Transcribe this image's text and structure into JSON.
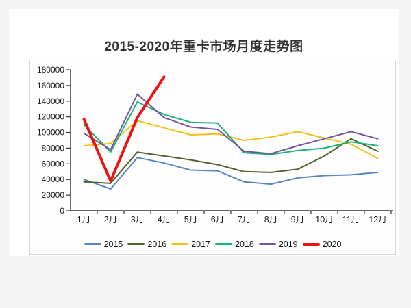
{
  "title": "2015-2020年重卡市场月度走势图",
  "panel": {
    "border_color": "#d4d4d4",
    "background": "#fefefe"
  },
  "axis": {
    "color": "#333333",
    "label_color": "#1a1a1a"
  },
  "chart_data": {
    "type": "line",
    "title": "2015-2020年重卡市场月度走势图",
    "xlabel": "",
    "ylabel": "",
    "categories": [
      "1月",
      "2月",
      "3月",
      "4月",
      "5月",
      "6月",
      "7月",
      "8月",
      "9月",
      "10月",
      "11月",
      "12月"
    ],
    "yticks": [
      "0",
      "20000",
      "40000",
      "60000",
      "80000",
      "100000",
      "120000",
      "140000",
      "160000",
      "180000"
    ],
    "ylim": [
      0,
      180000
    ],
    "ytick_step": 20000,
    "grid": false,
    "legend_position": "bottom",
    "series": [
      {
        "name": "2015",
        "color": "#5886c5",
        "thick": false,
        "values": [
          40000,
          28000,
          68000,
          61000,
          52000,
          51000,
          37000,
          34000,
          42000,
          45000,
          46000,
          49000
        ]
      },
      {
        "name": "2016",
        "color": "#50622b",
        "thick": false,
        "values": [
          37000,
          35000,
          75000,
          70000,
          65000,
          59000,
          50000,
          49000,
          53000,
          70000,
          92000,
          76000
        ]
      },
      {
        "name": "2017",
        "color": "#f3c019",
        "thick": false,
        "values": [
          83000,
          86000,
          115000,
          106000,
          97000,
          98000,
          90000,
          94000,
          101000,
          93000,
          85000,
          67000
        ]
      },
      {
        "name": "2018",
        "color": "#1cb373",
        "thick": false,
        "values": [
          110000,
          75000,
          139000,
          123000,
          113000,
          112000,
          74000,
          72000,
          77000,
          80000,
          88000,
          83000
        ]
      },
      {
        "name": "2019",
        "color": "#7b52a3",
        "thick": false,
        "values": [
          99000,
          78000,
          149000,
          119000,
          107000,
          104000,
          76000,
          73000,
          83000,
          92000,
          101000,
          92000
        ]
      },
      {
        "name": "2020",
        "color": "#ee1211",
        "thick": true,
        "values": [
          117000,
          38000,
          119000,
          171000
        ]
      }
    ]
  }
}
